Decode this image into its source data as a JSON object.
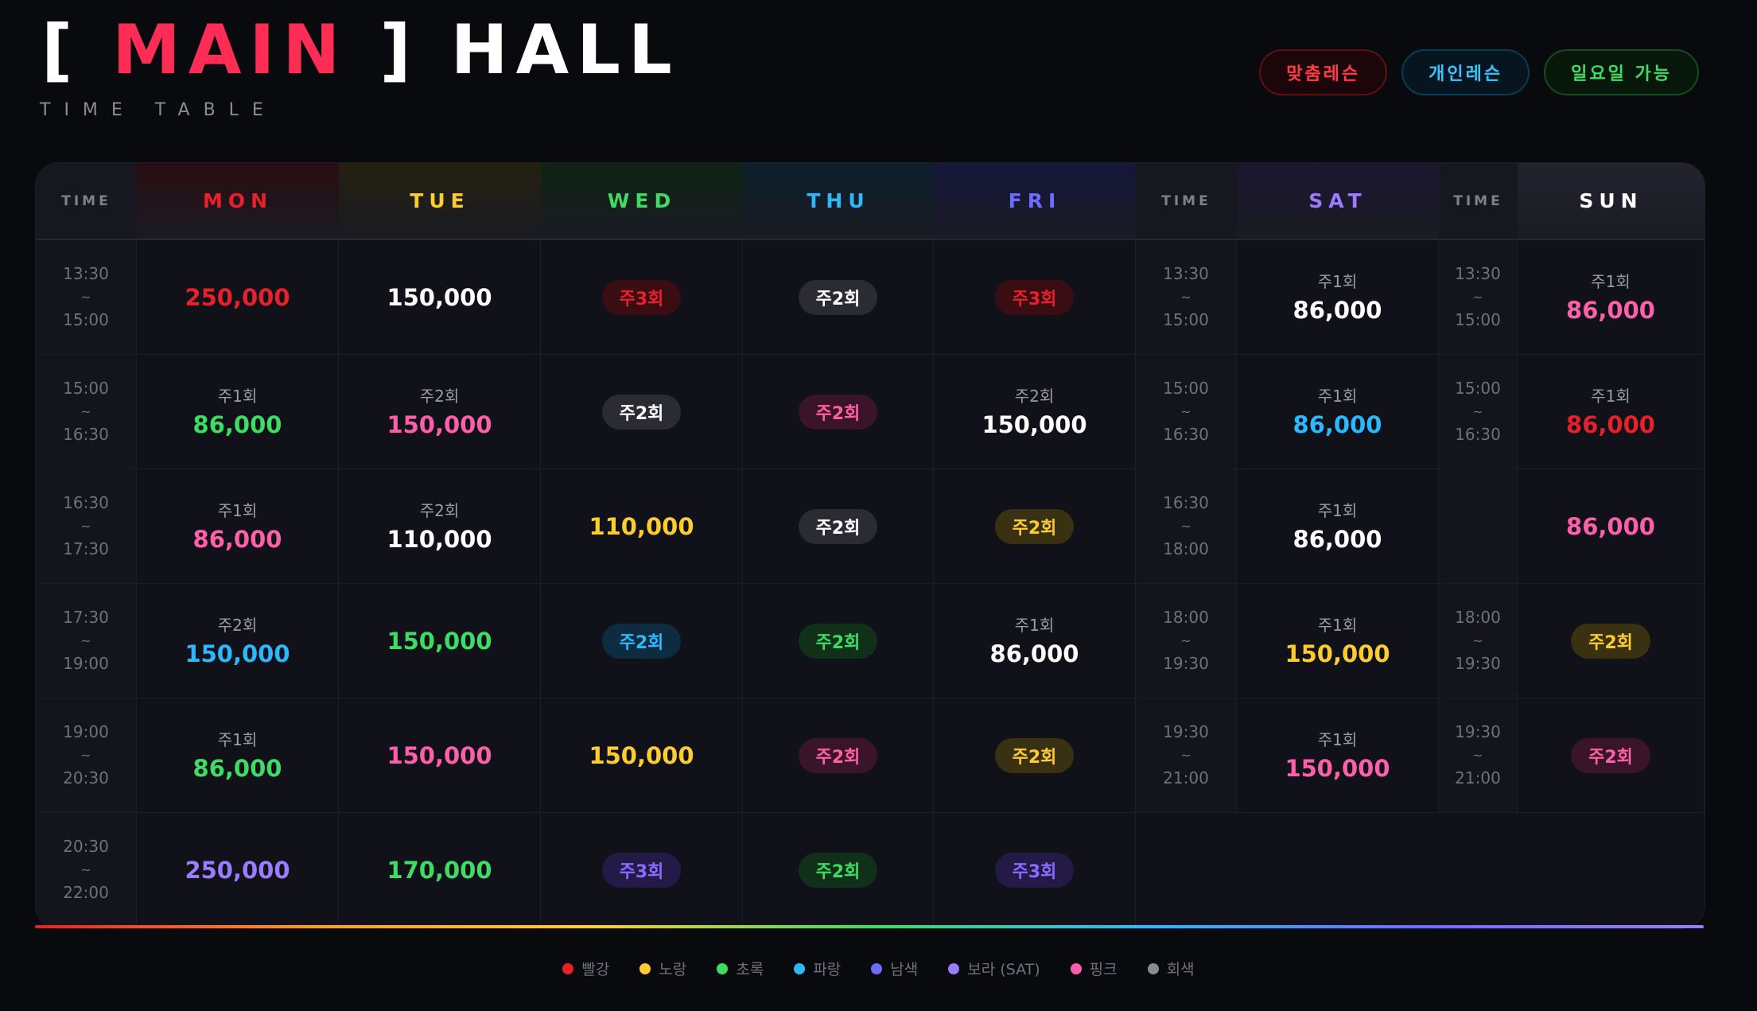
{
  "header": {
    "title_open": "[",
    "title_main": "MAIN",
    "title_close": "]",
    "title_hall": "HALL",
    "subtitle": "TIME TABLE"
  },
  "pills": [
    {
      "label": "맞춤레슨",
      "style": "red"
    },
    {
      "label": "개인레슨",
      "style": "blue"
    },
    {
      "label": "일요일 가능",
      "style": "green"
    }
  ],
  "columns": [
    {
      "label": "TIME",
      "type": "time"
    },
    {
      "label": "MON",
      "type": "mon"
    },
    {
      "label": "TUE",
      "type": "tue"
    },
    {
      "label": "WED",
      "type": "wed"
    },
    {
      "label": "THU",
      "type": "thu"
    },
    {
      "label": "FRI",
      "type": "fri"
    },
    {
      "label": "TIME",
      "type": "time"
    },
    {
      "label": "SAT",
      "type": "sat"
    },
    {
      "label": "TIME",
      "type": "time"
    },
    {
      "label": "SUN",
      "type": "sun"
    }
  ],
  "colors": {
    "red": "#e8202a",
    "yellow": "#ffcc2e",
    "green": "#3ddc62",
    "blue": "#2bb8ff",
    "navy": "#6e6bff",
    "purple": "#9b7bff",
    "pink": "#ff5fa8",
    "gray": "#8a8c93",
    "white": "#ffffff"
  },
  "rows": [
    [
      {
        "kind": "time",
        "start": "13:30",
        "end": "15:00"
      },
      {
        "kind": "price",
        "price": "250,000",
        "color": "red"
      },
      {
        "kind": "price",
        "price": "150,000",
        "color": "white"
      },
      {
        "kind": "badge",
        "label": "주3회",
        "color": "red"
      },
      {
        "kind": "badge",
        "label": "주2회",
        "color": "white"
      },
      {
        "kind": "badge",
        "label": "주3회",
        "color": "red"
      },
      {
        "kind": "time",
        "start": "13:30",
        "end": "15:00"
      },
      {
        "kind": "price",
        "freq": "주1회",
        "price": "86,000",
        "color": "white"
      },
      {
        "kind": "time",
        "start": "13:30",
        "end": "15:00"
      },
      {
        "kind": "price",
        "freq": "주1회",
        "price": "86,000",
        "color": "pink"
      }
    ],
    [
      {
        "kind": "time",
        "start": "15:00",
        "end": "16:30"
      },
      {
        "kind": "price",
        "freq": "주1회",
        "price": "86,000",
        "color": "green"
      },
      {
        "kind": "price",
        "freq": "주2회",
        "price": "150,000",
        "color": "pink"
      },
      {
        "kind": "badge",
        "label": "주2회",
        "color": "white"
      },
      {
        "kind": "badge",
        "label": "주2회",
        "color": "pink"
      },
      {
        "kind": "price",
        "freq": "주2회",
        "price": "150,000",
        "color": "white"
      },
      {
        "kind": "time",
        "start": "15:00",
        "end": "16:30"
      },
      {
        "kind": "price",
        "freq": "주1회",
        "price": "86,000",
        "color": "blue"
      },
      {
        "kind": "time",
        "start": "15:00",
        "end": "16:30"
      },
      {
        "kind": "price",
        "freq": "주1회",
        "price": "86,000",
        "color": "red"
      }
    ],
    [
      {
        "kind": "time",
        "start": "16:30",
        "end": "17:30"
      },
      {
        "kind": "price",
        "freq": "주1회",
        "price": "86,000",
        "color": "pink"
      },
      {
        "kind": "price",
        "freq": "주2회",
        "price": "110,000",
        "color": "white"
      },
      {
        "kind": "price",
        "price": "110,000",
        "color": "yellow"
      },
      {
        "kind": "badge",
        "label": "주2회",
        "color": "white"
      },
      {
        "kind": "badge",
        "label": "주2회",
        "color": "yellow"
      },
      {
        "kind": "time",
        "start": "16:30",
        "end": "18:00"
      },
      {
        "kind": "price",
        "freq": "주1회",
        "price": "86,000",
        "color": "white"
      },
      {
        "kind": "blank"
      },
      {
        "kind": "price",
        "price": "86,000",
        "color": "pink"
      }
    ],
    [
      {
        "kind": "time",
        "start": "17:30",
        "end": "19:00"
      },
      {
        "kind": "price",
        "freq": "주2회",
        "price": "150,000",
        "color": "blue"
      },
      {
        "kind": "price",
        "price": "150,000",
        "color": "green"
      },
      {
        "kind": "badge",
        "label": "주2회",
        "color": "blue"
      },
      {
        "kind": "badge",
        "label": "주2회",
        "color": "green"
      },
      {
        "kind": "price",
        "freq": "주1회",
        "price": "86,000",
        "color": "white"
      },
      {
        "kind": "time",
        "start": "18:00",
        "end": "19:30"
      },
      {
        "kind": "price",
        "freq": "주1회",
        "price": "150,000",
        "color": "yellow"
      },
      {
        "kind": "time",
        "start": "18:00",
        "end": "19:30"
      },
      {
        "kind": "badge",
        "label": "주2회",
        "color": "yellow"
      }
    ],
    [
      {
        "kind": "time",
        "start": "19:00",
        "end": "20:30"
      },
      {
        "kind": "price",
        "freq": "주1회",
        "price": "86,000",
        "color": "green"
      },
      {
        "kind": "price",
        "price": "150,000",
        "color": "pink"
      },
      {
        "kind": "price",
        "price": "150,000",
        "color": "yellow"
      },
      {
        "kind": "badge",
        "label": "주2회",
        "color": "pink"
      },
      {
        "kind": "badge",
        "label": "주2회",
        "color": "yellow"
      },
      {
        "kind": "time",
        "start": "19:30",
        "end": "21:00"
      },
      {
        "kind": "price",
        "freq": "주1회",
        "price": "150,000",
        "color": "pink"
      },
      {
        "kind": "time",
        "start": "19:30",
        "end": "21:00"
      },
      {
        "kind": "badge",
        "label": "주2회",
        "color": "pink"
      }
    ],
    [
      {
        "kind": "time",
        "start": "20:30",
        "end": "22:00"
      },
      {
        "kind": "price",
        "price": "250,000",
        "color": "purple"
      },
      {
        "kind": "price",
        "price": "170,000",
        "color": "green"
      },
      {
        "kind": "badge",
        "label": "주3회",
        "color": "purple"
      },
      {
        "kind": "badge",
        "label": "주2회",
        "color": "green"
      },
      {
        "kind": "badge",
        "label": "주3회",
        "color": "purple"
      },
      {
        "kind": "empty"
      },
      {
        "kind": "empty"
      },
      {
        "kind": "empty"
      },
      {
        "kind": "empty"
      }
    ]
  ],
  "time_separator": "~",
  "color_legend": [
    {
      "label": "빨강",
      "color": "#e8202a"
    },
    {
      "label": "노랑",
      "color": "#ffcc2e"
    },
    {
      "label": "초록",
      "color": "#3ddc62"
    },
    {
      "label": "파랑",
      "color": "#2bb8ff"
    },
    {
      "label": "남색",
      "color": "#6e6bff"
    },
    {
      "label": "보라 (SAT)",
      "color": "#9b7bff"
    },
    {
      "label": "핑크",
      "color": "#ff5fa8"
    },
    {
      "label": "회색",
      "color": "#8a8c93"
    }
  ]
}
